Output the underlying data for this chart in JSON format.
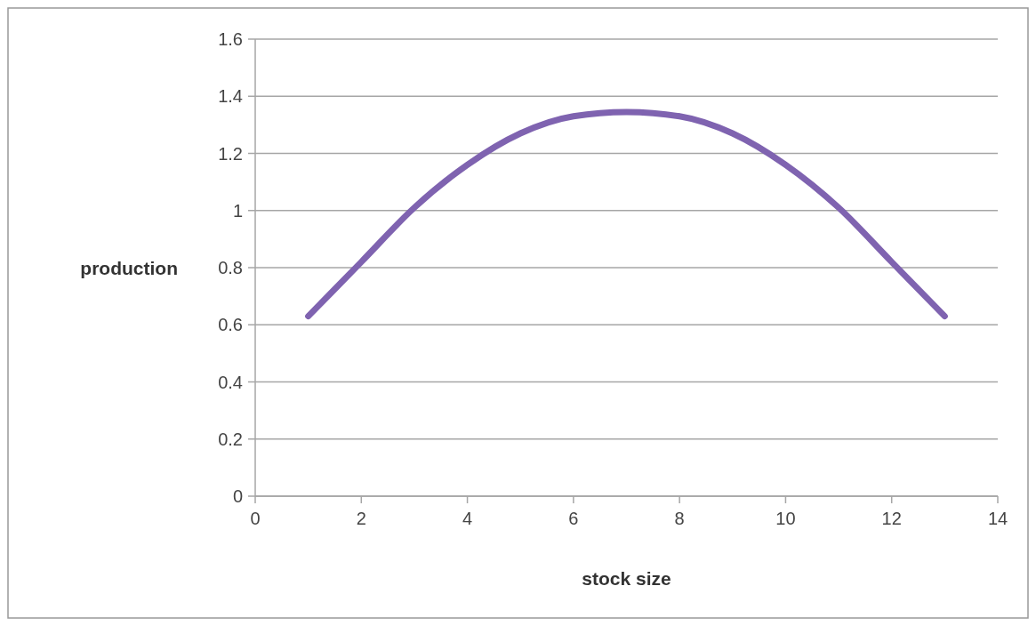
{
  "chart_data": {
    "type": "line",
    "xlabel": "stock size",
    "ylabel": "production",
    "x": [
      1,
      2,
      3,
      4,
      5,
      6,
      7,
      8,
      9,
      10,
      11,
      12,
      13
    ],
    "series": [
      {
        "color": "#7f63b0",
        "values": [
          0.63,
          0.82,
          1.01,
          1.16,
          1.27,
          1.33,
          1.345,
          1.33,
          1.27,
          1.16,
          1.01,
          0.82,
          0.63
        ]
      }
    ],
    "xlim": [
      0,
      14
    ],
    "xticks": [
      0,
      2,
      4,
      6,
      8,
      10,
      12,
      14
    ],
    "ylim": [
      0,
      1.6
    ],
    "yticks": [
      0,
      0.2,
      0.4,
      0.6,
      0.8,
      1,
      1.2,
      1.4,
      1.6
    ],
    "grid": "y",
    "marker": "none",
    "line_style": "solid"
  }
}
